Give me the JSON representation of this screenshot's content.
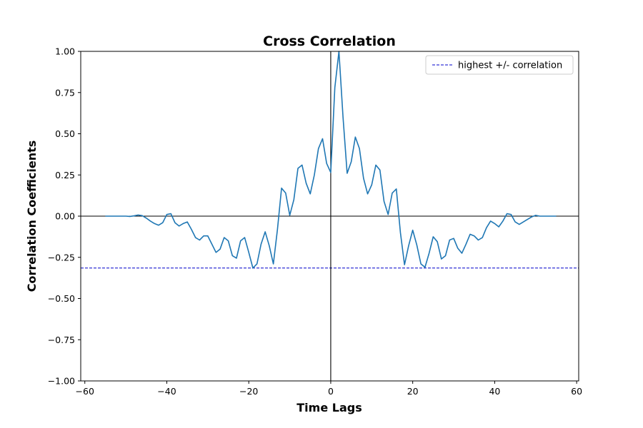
{
  "chart_data": {
    "type": "line",
    "title": "Cross Correlation",
    "xlabel": "Time Lags",
    "ylabel": "Correlation Coefficients",
    "xlim": [
      -61,
      60.5
    ],
    "ylim": [
      -1.0,
      1.0
    ],
    "xticks": [
      -60,
      -40,
      -20,
      0,
      20,
      40,
      60
    ],
    "xtick_labels": [
      "−60",
      "−40",
      "−20",
      "0",
      "20",
      "40",
      "60"
    ],
    "yticks": [
      1.0,
      0.75,
      0.5,
      0.25,
      0.0,
      -0.25,
      -0.5,
      -0.75,
      -1.0
    ],
    "ytick_labels": [
      "1.00",
      "0.75",
      "0.50",
      "0.25",
      "0.00",
      "−0.25",
      "−0.50",
      "−0.75",
      "−1.00"
    ],
    "grid": false,
    "legend_position": "top-right",
    "colors": {
      "series": "#1f77b4",
      "threshold": "#0000cc",
      "axes": "#000000"
    },
    "series": [
      {
        "x": [
          -55,
          -54,
          -53,
          -52,
          -51,
          -50,
          -49,
          -48,
          -47,
          -46,
          -45,
          -44,
          -43,
          -42,
          -41,
          -40,
          -39,
          -38,
          -37,
          -36,
          -35,
          -34,
          -33,
          -32,
          -31,
          -30,
          -29,
          -28,
          -27,
          -26,
          -25,
          -24,
          -23,
          -22,
          -21,
          -20,
          -19,
          -18,
          -17,
          -16,
          -15,
          -14,
          -13,
          -12,
          -11,
          -10,
          -9,
          -8,
          -7,
          -6,
          -5,
          -4,
          -3,
          -2,
          -1,
          0,
          1,
          2,
          3,
          4,
          5,
          6,
          7,
          8,
          9,
          10,
          11,
          12,
          13,
          14,
          15,
          16,
          17,
          18,
          19,
          20,
          21,
          22,
          23,
          24,
          25,
          26,
          27,
          28,
          29,
          30,
          31,
          32,
          33,
          34,
          35,
          36,
          37,
          38,
          39,
          40,
          41,
          42,
          43,
          44,
          45,
          46,
          47,
          48,
          49,
          50,
          51,
          52,
          53,
          54,
          55
        ],
        "values": [
          0,
          0,
          0,
          0,
          0,
          0,
          -0.002,
          0.002,
          0.007,
          0.003,
          -0.012,
          -0.03,
          -0.045,
          -0.055,
          -0.04,
          0.01,
          0.015,
          -0.04,
          -0.06,
          -0.045,
          -0.035,
          -0.08,
          -0.13,
          -0.145,
          -0.12,
          -0.12,
          -0.17,
          -0.22,
          -0.2,
          -0.13,
          -0.15,
          -0.24,
          -0.255,
          -0.15,
          -0.13,
          -0.22,
          -0.315,
          -0.29,
          -0.17,
          -0.095,
          -0.18,
          -0.29,
          -0.08,
          0.17,
          0.14,
          0.005,
          0.1,
          0.29,
          0.31,
          0.2,
          0.135,
          0.25,
          0.41,
          0.47,
          0.32,
          0.265,
          0.78,
          1.0,
          0.6,
          0.26,
          0.33,
          0.48,
          0.41,
          0.23,
          0.135,
          0.19,
          0.31,
          0.28,
          0.09,
          0.01,
          0.14,
          0.165,
          -0.1,
          -0.295,
          -0.18,
          -0.085,
          -0.175,
          -0.29,
          -0.31,
          -0.225,
          -0.125,
          -0.155,
          -0.26,
          -0.24,
          -0.145,
          -0.135,
          -0.195,
          -0.225,
          -0.17,
          -0.11,
          -0.12,
          -0.145,
          -0.13,
          -0.07,
          -0.03,
          -0.045,
          -0.065,
          -0.03,
          0.015,
          0.01,
          -0.035,
          -0.05,
          -0.035,
          -0.02,
          -0.005,
          0.005,
          0,
          0,
          0,
          0,
          0
        ]
      }
    ],
    "reference_lines": [
      {
        "name": "highest +/- correlation",
        "type": "horizontal",
        "y": 1.0,
        "style": "dashed"
      },
      {
        "name": "highest +/- correlation",
        "type": "horizontal",
        "y": -0.315,
        "style": "dashed"
      }
    ],
    "legend": [
      {
        "label": "highest +/- correlation",
        "style": "dashed"
      }
    ]
  }
}
